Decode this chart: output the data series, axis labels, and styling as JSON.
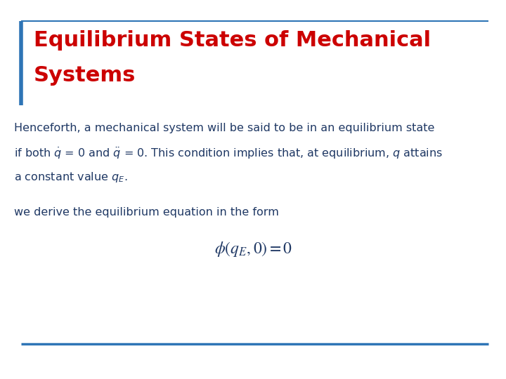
{
  "title_line1": "Equilibrium States of Mechanical",
  "title_line2": "Systems",
  "title_color": "#cc0000",
  "title_fontsize": 22,
  "border_color": "#2e75b6",
  "body_text_color": "#1f3864",
  "body_fontsize": 11.5,
  "body_line1": "Henceforth, a mechanical system will be said to be in an equilibrium state",
  "body_line3": "a constant value $q_E$.",
  "body_line4": "we derive the equilibrium equation in the form",
  "equation_fontsize": 17,
  "bottom_line_color": "#2e75b6",
  "background_color": "#ffffff",
  "left_bar_color": "#2e75b6",
  "top_line_color": "#2e75b6"
}
